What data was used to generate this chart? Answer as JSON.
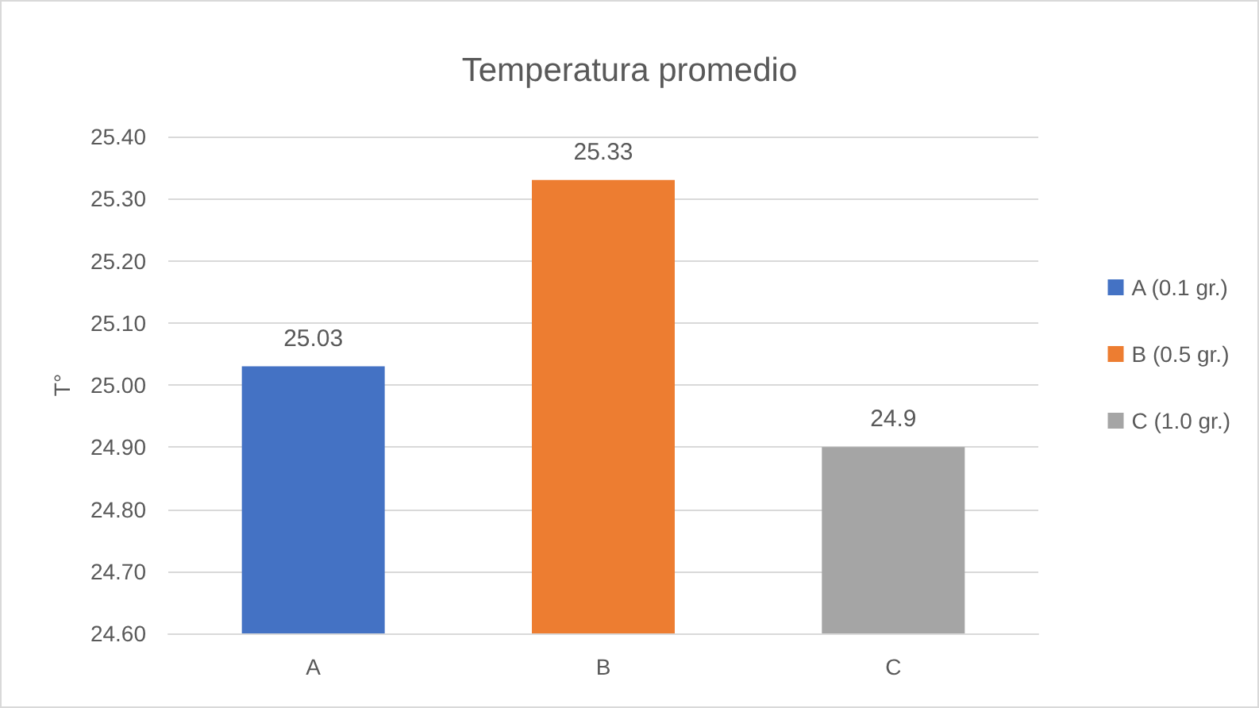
{
  "chart_data": {
    "type": "bar",
    "title": "Temperatura promedio",
    "ylabel": "T°",
    "categories": [
      "A",
      "B",
      "C"
    ],
    "series": [
      {
        "name": "A (0.1 gr.)",
        "color": "#4472c4",
        "values": [
          25.03,
          null,
          null
        ]
      },
      {
        "name": "B (0.5 gr.)",
        "color": "#ed7d31",
        "values": [
          null,
          25.33,
          null
        ]
      },
      {
        "name": "C (1.0 gr.)",
        "color": "#a5a5a5",
        "values": [
          null,
          null,
          24.9
        ]
      }
    ],
    "ylim": [
      24.6,
      25.4
    ],
    "yticks": [
      {
        "value": 24.6,
        "label": "24.60"
      },
      {
        "value": 24.7,
        "label": "24.70"
      },
      {
        "value": 24.8,
        "label": "24.80"
      },
      {
        "value": 24.9,
        "label": "24.90"
      },
      {
        "value": 25.0,
        "label": "25.00"
      },
      {
        "value": 25.1,
        "label": "25.10"
      },
      {
        "value": 25.2,
        "label": "25.20"
      },
      {
        "value": 25.3,
        "label": "25.30"
      },
      {
        "value": 25.4,
        "label": "25.40"
      }
    ],
    "grid": "y",
    "legend": "right",
    "data_labels": true
  }
}
